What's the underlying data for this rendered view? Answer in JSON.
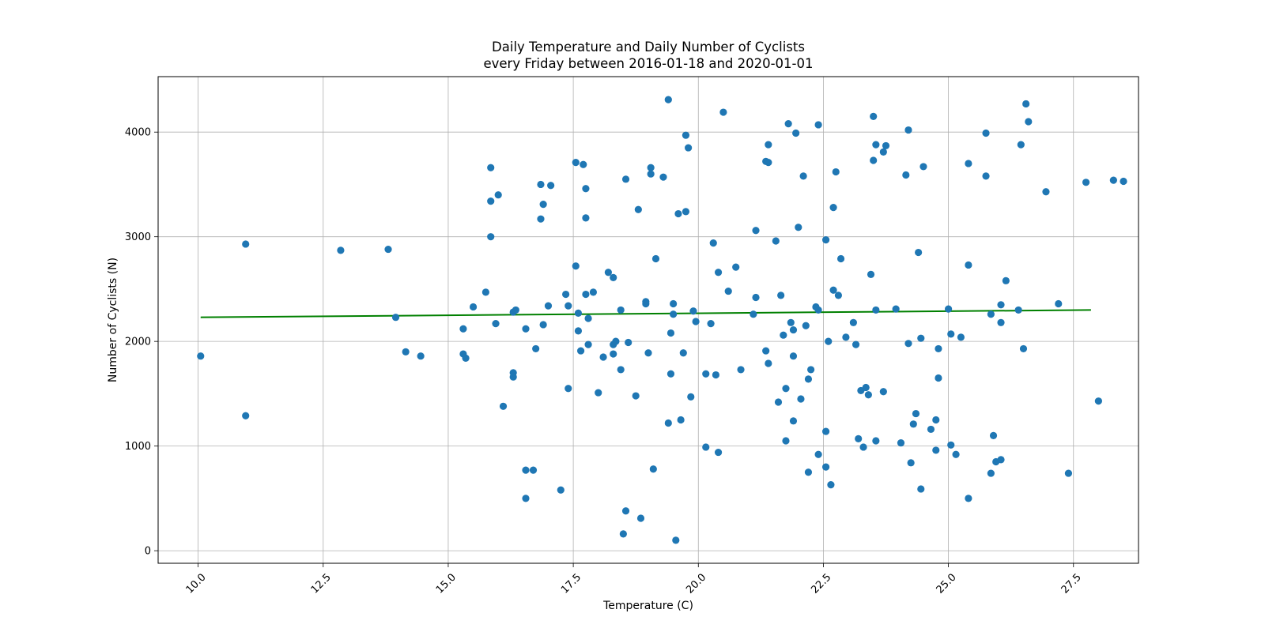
{
  "chart_data": {
    "type": "scatter",
    "title": "Daily Temperature and Daily Number of Cyclists",
    "subtitle": "every Friday between 2016-01-18 and 2020-01-01",
    "xlabel": "Temperature (C)",
    "ylabel": "Number of Cyclists (N)",
    "xlim": [
      9.2,
      28.8
    ],
    "ylim": [
      -120,
      4530
    ],
    "x_ticks": [
      10.0,
      12.5,
      15.0,
      17.5,
      20.0,
      22.5,
      25.0,
      27.5
    ],
    "x_tick_labels": [
      "10.0",
      "12.5",
      "15.0",
      "17.5",
      "20.0",
      "22.5",
      "25.0",
      "27.5"
    ],
    "y_ticks": [
      0,
      1000,
      2000,
      3000,
      4000
    ],
    "y_tick_labels": [
      "0",
      "1000",
      "2000",
      "3000",
      "4000"
    ],
    "grid": true,
    "x_tick_rotation_deg": 45,
    "points_color": "#1f77b4",
    "trend_color": "#008000",
    "trend_line": {
      "x": [
        10.05,
        27.85
      ],
      "y": [
        2230,
        2300
      ]
    },
    "points": [
      [
        10.05,
        1860
      ],
      [
        10.95,
        2930
      ],
      [
        10.95,
        1290
      ],
      [
        12.85,
        2870
      ],
      [
        13.8,
        2880
      ],
      [
        13.95,
        2230
      ],
      [
        14.15,
        1900
      ],
      [
        14.45,
        1860
      ],
      [
        15.3,
        2120
      ],
      [
        15.3,
        1880
      ],
      [
        15.35,
        1840
      ],
      [
        15.5,
        2330
      ],
      [
        15.75,
        2470
      ],
      [
        15.85,
        3660
      ],
      [
        15.85,
        3000
      ],
      [
        15.85,
        3340
      ],
      [
        15.95,
        2170
      ],
      [
        16.0,
        3400
      ],
      [
        16.1,
        1380
      ],
      [
        16.3,
        2280
      ],
      [
        16.35,
        2300
      ],
      [
        16.3,
        1700
      ],
      [
        16.3,
        1660
      ],
      [
        16.55,
        770
      ],
      [
        16.55,
        500
      ],
      [
        16.55,
        2120
      ],
      [
        16.7,
        770
      ],
      [
        16.75,
        1930
      ],
      [
        16.85,
        3500
      ],
      [
        16.85,
        3170
      ],
      [
        16.9,
        3310
      ],
      [
        16.9,
        2160
      ],
      [
        17.0,
        2340
      ],
      [
        17.05,
        3490
      ],
      [
        17.25,
        580
      ],
      [
        17.35,
        2450
      ],
      [
        17.4,
        2340
      ],
      [
        17.4,
        1550
      ],
      [
        17.55,
        3710
      ],
      [
        17.55,
        2720
      ],
      [
        17.6,
        2270
      ],
      [
        17.6,
        2100
      ],
      [
        17.65,
        1910
      ],
      [
        17.7,
        3690
      ],
      [
        17.75,
        3460
      ],
      [
        17.75,
        3180
      ],
      [
        17.75,
        2450
      ],
      [
        17.8,
        1970
      ],
      [
        17.8,
        2220
      ],
      [
        17.9,
        2470
      ],
      [
        18.0,
        1510
      ],
      [
        18.1,
        1850
      ],
      [
        18.2,
        2660
      ],
      [
        18.3,
        1970
      ],
      [
        18.3,
        1880
      ],
      [
        18.3,
        2610
      ],
      [
        18.35,
        2000
      ],
      [
        18.45,
        1730
      ],
      [
        18.45,
        2300
      ],
      [
        18.5,
        160
      ],
      [
        18.55,
        380
      ],
      [
        18.55,
        3550
      ],
      [
        18.6,
        1990
      ],
      [
        18.75,
        1480
      ],
      [
        18.8,
        3260
      ],
      [
        18.85,
        310
      ],
      [
        18.95,
        2380
      ],
      [
        18.95,
        2360
      ],
      [
        19.0,
        1890
      ],
      [
        19.05,
        3600
      ],
      [
        19.05,
        3660
      ],
      [
        19.1,
        780
      ],
      [
        19.15,
        2790
      ],
      [
        19.3,
        3570
      ],
      [
        19.4,
        1220
      ],
      [
        19.4,
        4310
      ],
      [
        19.45,
        2080
      ],
      [
        19.45,
        1690
      ],
      [
        19.5,
        2360
      ],
      [
        19.5,
        2260
      ],
      [
        19.55,
        100
      ],
      [
        19.6,
        3220
      ],
      [
        19.65,
        1250
      ],
      [
        19.7,
        1890
      ],
      [
        19.75,
        3970
      ],
      [
        19.75,
        3240
      ],
      [
        19.8,
        3850
      ],
      [
        19.85,
        1470
      ],
      [
        19.9,
        2290
      ],
      [
        19.95,
        2190
      ],
      [
        20.15,
        1690
      ],
      [
        20.15,
        990
      ],
      [
        20.25,
        2170
      ],
      [
        20.3,
        2940
      ],
      [
        20.35,
        1680
      ],
      [
        20.4,
        2660
      ],
      [
        20.4,
        940
      ],
      [
        20.5,
        4190
      ],
      [
        20.6,
        2480
      ],
      [
        20.75,
        2710
      ],
      [
        20.85,
        1730
      ],
      [
        21.1,
        2260
      ],
      [
        21.15,
        3060
      ],
      [
        21.15,
        2420
      ],
      [
        21.35,
        3720
      ],
      [
        21.35,
        1910
      ],
      [
        21.4,
        3710
      ],
      [
        21.4,
        3880
      ],
      [
        21.4,
        1790
      ],
      [
        21.55,
        2960
      ],
      [
        21.6,
        1420
      ],
      [
        21.65,
        2440
      ],
      [
        21.7,
        2060
      ],
      [
        21.75,
        1050
      ],
      [
        21.75,
        1550
      ],
      [
        21.8,
        4080
      ],
      [
        21.85,
        2180
      ],
      [
        21.9,
        1860
      ],
      [
        21.9,
        1240
      ],
      [
        21.9,
        2110
      ],
      [
        21.95,
        3990
      ],
      [
        22.0,
        3090
      ],
      [
        22.05,
        1450
      ],
      [
        22.1,
        3580
      ],
      [
        22.15,
        2150
      ],
      [
        22.2,
        1640
      ],
      [
        22.2,
        750
      ],
      [
        22.25,
        1730
      ],
      [
        22.35,
        2330
      ],
      [
        22.4,
        2300
      ],
      [
        22.4,
        4070
      ],
      [
        22.4,
        920
      ],
      [
        22.55,
        2970
      ],
      [
        22.55,
        1140
      ],
      [
        22.55,
        800
      ],
      [
        22.6,
        2000
      ],
      [
        22.65,
        630
      ],
      [
        22.7,
        3280
      ],
      [
        22.7,
        2490
      ],
      [
        22.75,
        3620
      ],
      [
        22.8,
        2440
      ],
      [
        22.85,
        2790
      ],
      [
        22.95,
        2040
      ],
      [
        23.1,
        2180
      ],
      [
        23.15,
        1970
      ],
      [
        23.2,
        1070
      ],
      [
        23.25,
        1530
      ],
      [
        23.3,
        990
      ],
      [
        23.35,
        1560
      ],
      [
        23.4,
        1490
      ],
      [
        23.45,
        2640
      ],
      [
        23.5,
        4150
      ],
      [
        23.5,
        3730
      ],
      [
        23.55,
        3880
      ],
      [
        23.55,
        2300
      ],
      [
        23.55,
        1050
      ],
      [
        23.7,
        1520
      ],
      [
        23.7,
        3810
      ],
      [
        23.75,
        3870
      ],
      [
        23.95,
        2310
      ],
      [
        24.05,
        1030
      ],
      [
        24.15,
        3590
      ],
      [
        24.2,
        4020
      ],
      [
        24.2,
        1980
      ],
      [
        24.25,
        840
      ],
      [
        24.3,
        1210
      ],
      [
        24.35,
        1310
      ],
      [
        24.4,
        2850
      ],
      [
        24.45,
        590
      ],
      [
        24.45,
        2030
      ],
      [
        24.5,
        3670
      ],
      [
        24.65,
        1160
      ],
      [
        24.75,
        1250
      ],
      [
        24.75,
        960
      ],
      [
        24.8,
        1930
      ],
      [
        24.8,
        1650
      ],
      [
        25.0,
        2310
      ],
      [
        25.05,
        2070
      ],
      [
        25.05,
        1010
      ],
      [
        25.15,
        920
      ],
      [
        25.25,
        2040
      ],
      [
        25.4,
        3700
      ],
      [
        25.4,
        500
      ],
      [
        25.4,
        2730
      ],
      [
        25.75,
        3580
      ],
      [
        25.75,
        3990
      ],
      [
        25.85,
        2260
      ],
      [
        25.85,
        740
      ],
      [
        25.9,
        1100
      ],
      [
        25.95,
        850
      ],
      [
        26.05,
        2350
      ],
      [
        26.05,
        870
      ],
      [
        26.05,
        2180
      ],
      [
        26.15,
        2580
      ],
      [
        26.4,
        2300
      ],
      [
        26.45,
        3880
      ],
      [
        26.5,
        1930
      ],
      [
        26.55,
        4270
      ],
      [
        26.6,
        4100
      ],
      [
        26.95,
        3430
      ],
      [
        27.2,
        2360
      ],
      [
        27.4,
        740
      ],
      [
        27.75,
        3520
      ],
      [
        28.0,
        1430
      ],
      [
        28.3,
        3540
      ],
      [
        28.5,
        3530
      ]
    ]
  }
}
